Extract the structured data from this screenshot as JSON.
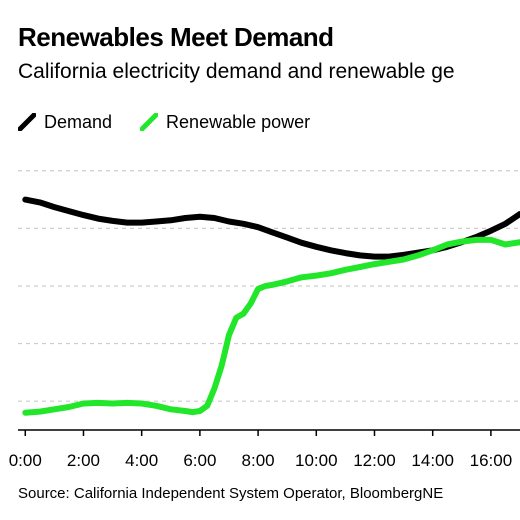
{
  "title": "Renewables Meet Demand",
  "subtitle": "California electricity demand and renewable ge",
  "source": "Source: California Independent System Operator, BloombergNE",
  "colors": {
    "demand": "#000000",
    "renewable": "#22e62a",
    "grid": "#cccccc",
    "axis": "#000000"
  },
  "legend": {
    "placement": "top-left",
    "items": [
      {
        "label": "Demand",
        "color": "#000000"
      },
      {
        "label": "Renewable power",
        "color": "#22e62a"
      }
    ]
  },
  "chart_data": {
    "type": "line",
    "title": "Renewables Meet Demand",
    "subtitle": "California electricity demand and renewable ge",
    "xlabel": "",
    "ylabel": "",
    "x_unit": "hour of day",
    "xlim": [
      -0.25,
      17
    ],
    "ylim": [
      0,
      4.6
    ],
    "grid": true,
    "x_ticks": [
      {
        "value": 0,
        "label": "0:00"
      },
      {
        "value": 2,
        "label": "2:00"
      },
      {
        "value": 4,
        "label": "4:00"
      },
      {
        "value": 6,
        "label": "6:00"
      },
      {
        "value": 8,
        "label": "8:00"
      },
      {
        "value": 10,
        "label": "10:00"
      },
      {
        "value": 12,
        "label": "12:00"
      },
      {
        "value": 14,
        "label": "14:00"
      },
      {
        "value": 16,
        "label": "16:00"
      }
    ],
    "y_gridlines": [
      0.5,
      1.5,
      2.5,
      3.5,
      4.5
    ],
    "series": [
      {
        "name": "Demand",
        "color": "#000000",
        "x": [
          0,
          0.5,
          1,
          1.5,
          2,
          2.5,
          3,
          3.5,
          4,
          4.5,
          5,
          5.5,
          6,
          6.5,
          7,
          7.5,
          8,
          8.5,
          9,
          9.5,
          10,
          10.5,
          11,
          11.5,
          12,
          12.5,
          13,
          13.5,
          14,
          14.5,
          15,
          15.5,
          16,
          16.5,
          17
        ],
        "values": [
          4.0,
          3.95,
          3.87,
          3.8,
          3.73,
          3.67,
          3.63,
          3.6,
          3.6,
          3.62,
          3.64,
          3.68,
          3.7,
          3.68,
          3.62,
          3.58,
          3.52,
          3.43,
          3.34,
          3.25,
          3.18,
          3.12,
          3.07,
          3.03,
          3.01,
          3.01,
          3.04,
          3.08,
          3.12,
          3.18,
          3.26,
          3.35,
          3.46,
          3.58,
          3.75
        ]
      },
      {
        "name": "Renewable power",
        "color": "#22e62a",
        "x": [
          0,
          0.5,
          1,
          1.5,
          2,
          2.5,
          3,
          3.5,
          4,
          4.5,
          5,
          5.5,
          5.75,
          6,
          6.25,
          6.5,
          6.75,
          7,
          7.25,
          7.5,
          7.75,
          8,
          8.25,
          8.5,
          9,
          9.5,
          10,
          10.5,
          11,
          11.5,
          12,
          12.5,
          13,
          13.5,
          14,
          14.5,
          15,
          15.5,
          16,
          16.5,
          17
        ],
        "values": [
          0.3,
          0.32,
          0.36,
          0.4,
          0.46,
          0.47,
          0.46,
          0.47,
          0.46,
          0.42,
          0.36,
          0.33,
          0.31,
          0.33,
          0.42,
          0.72,
          1.12,
          1.65,
          1.95,
          2.02,
          2.2,
          2.45,
          2.5,
          2.52,
          2.58,
          2.65,
          2.68,
          2.72,
          2.78,
          2.83,
          2.88,
          2.92,
          2.96,
          3.03,
          3.12,
          3.22,
          3.27,
          3.3,
          3.3,
          3.22,
          3.26
        ]
      }
    ]
  }
}
